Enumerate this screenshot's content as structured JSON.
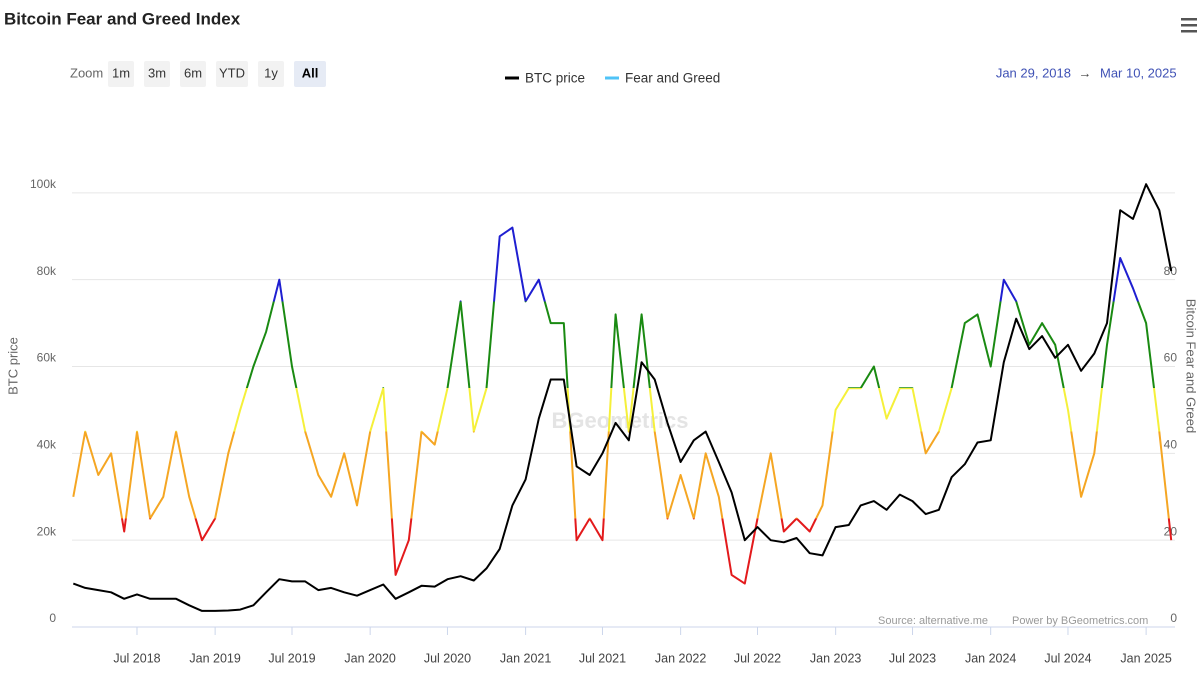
{
  "header": {
    "title": "Bitcoin Fear and Greed Index"
  },
  "zoom": {
    "label": "Zoom",
    "buttons": [
      "1m",
      "3m",
      "6m",
      "YTD",
      "1y",
      "All"
    ],
    "selected": 5
  },
  "range": {
    "from": "Jan 29, 2018",
    "arrow": "→",
    "to": "Mar 10, 2025"
  },
  "credits": [
    "Source: alternative.me",
    "Power by BGeometrics.com"
  ],
  "watermark": "BGeometrics",
  "chart_data": {
    "type": "line",
    "ylabel": "BTC price",
    "y2label": "Bitcoin Fear and Greed",
    "legend": "top",
    "grid": true,
    "xlim": [
      "2018-01-29",
      "2025-03-10"
    ],
    "xticks": [
      {
        "value": "2018-07",
        "label": "Jul 2018"
      },
      {
        "value": "2019-01",
        "label": "Jan 2019"
      },
      {
        "value": "2019-07",
        "label": "Jul 2019"
      },
      {
        "value": "2020-01",
        "label": "Jan 2020"
      },
      {
        "value": "2020-07",
        "label": "Jul 2020"
      },
      {
        "value": "2021-01",
        "label": "Jan 2021"
      },
      {
        "value": "2021-07",
        "label": "Jul 2021"
      },
      {
        "value": "2022-01",
        "label": "Jan 2022"
      },
      {
        "value": "2022-07",
        "label": "Jul 2022"
      },
      {
        "value": "2023-01",
        "label": "Jan 2023"
      },
      {
        "value": "2023-07",
        "label": "Jul 2023"
      },
      {
        "value": "2024-01",
        "label": "Jan 2024"
      },
      {
        "value": "2024-07",
        "label": "Jul 2024"
      },
      {
        "value": "2025-01",
        "label": "Jan 2025"
      }
    ],
    "ylim": [
      0,
      120000
    ],
    "yticks": [
      0,
      {
        "value": 20000,
        "label": "20k"
      },
      {
        "value": 40000,
        "label": "40k"
      },
      {
        "value": 60000,
        "label": "60k"
      },
      {
        "value": 80000,
        "label": "80k"
      },
      {
        "value": 100000,
        "label": "100k"
      }
    ],
    "y2lim": [
      0,
      120
    ],
    "y2ticks": [
      0,
      20,
      40,
      60,
      80
    ],
    "x": [
      "2018-02",
      "2018-03",
      "2018-04",
      "2018-05",
      "2018-06",
      "2018-07",
      "2018-08",
      "2018-09",
      "2018-10",
      "2018-11",
      "2018-12",
      "2019-01",
      "2019-02",
      "2019-03",
      "2019-04",
      "2019-05",
      "2019-06",
      "2019-07",
      "2019-08",
      "2019-09",
      "2019-10",
      "2019-11",
      "2019-12",
      "2020-01",
      "2020-02",
      "2020-03",
      "2020-04",
      "2020-05",
      "2020-06",
      "2020-07",
      "2020-08",
      "2020-09",
      "2020-10",
      "2020-11",
      "2020-12",
      "2021-01",
      "2021-02",
      "2021-03",
      "2021-04",
      "2021-05",
      "2021-06",
      "2021-07",
      "2021-08",
      "2021-09",
      "2021-10",
      "2021-11",
      "2021-12",
      "2022-01",
      "2022-02",
      "2022-03",
      "2022-04",
      "2022-05",
      "2022-06",
      "2022-07",
      "2022-08",
      "2022-09",
      "2022-10",
      "2022-11",
      "2022-12",
      "2023-01",
      "2023-02",
      "2023-03",
      "2023-04",
      "2023-05",
      "2023-06",
      "2023-07",
      "2023-08",
      "2023-09",
      "2023-10",
      "2023-11",
      "2023-12",
      "2024-01",
      "2024-02",
      "2024-03",
      "2024-04",
      "2024-05",
      "2024-06",
      "2024-07",
      "2024-08",
      "2024-09",
      "2024-10",
      "2024-11",
      "2024-12",
      "2025-01",
      "2025-02",
      "2025-03"
    ],
    "series": [
      {
        "name": "BTC price",
        "color": "#000000",
        "axis": "y",
        "values": [
          10000,
          9000,
          8500,
          8000,
          6500,
          7500,
          6500,
          6500,
          6500,
          5000,
          3700,
          3700,
          3800,
          4000,
          5000,
          8000,
          11000,
          10500,
          10500,
          8500,
          9000,
          8000,
          7200,
          8500,
          9800,
          6500,
          8000,
          9500,
          9300,
          11000,
          11700,
          10700,
          13500,
          18000,
          28000,
          34000,
          48000,
          57000,
          57000,
          37000,
          35000,
          40000,
          47000,
          43000,
          61000,
          57000,
          47000,
          38000,
          43000,
          45000,
          38000,
          31000,
          20000,
          23000,
          20000,
          19500,
          20500,
          17000,
          16500,
          23000,
          23500,
          28000,
          29000,
          27000,
          30500,
          29000,
          26000,
          27000,
          34500,
          37500,
          42500,
          43000,
          61000,
          71000,
          64000,
          67000,
          62000,
          65000,
          59000,
          63000,
          70000,
          96000,
          94000,
          102000,
          96000,
          82000
        ]
      },
      {
        "name": "Fear and Greed",
        "color": "#4fc3f7",
        "axis": "y2",
        "zones": [
          {
            "to": 25,
            "color": "#e31a1c"
          },
          {
            "to": 45,
            "color": "#f5a623"
          },
          {
            "to": 55,
            "color": "#f5f03a"
          },
          {
            "to": 75,
            "color": "#1a8a12"
          },
          {
            "color": "#1f1fd1"
          }
        ],
        "values": [
          30,
          45,
          35,
          40,
          22,
          45,
          25,
          30,
          45,
          30,
          20,
          25,
          40,
          50,
          60,
          68,
          80,
          60,
          45,
          35,
          30,
          40,
          28,
          45,
          55,
          12,
          20,
          45,
          42,
          55,
          75,
          45,
          55,
          90,
          92,
          75,
          80,
          70,
          70,
          20,
          25,
          20,
          72,
          45,
          72,
          45,
          25,
          35,
          25,
          40,
          30,
          12,
          10,
          25,
          40,
          22,
          25,
          22,
          28,
          50,
          55,
          55,
          60,
          48,
          55,
          55,
          40,
          45,
          55,
          70,
          72,
          60,
          80,
          75,
          65,
          70,
          65,
          50,
          30,
          40,
          65,
          85,
          78,
          70,
          45,
          20
        ]
      }
    ]
  }
}
